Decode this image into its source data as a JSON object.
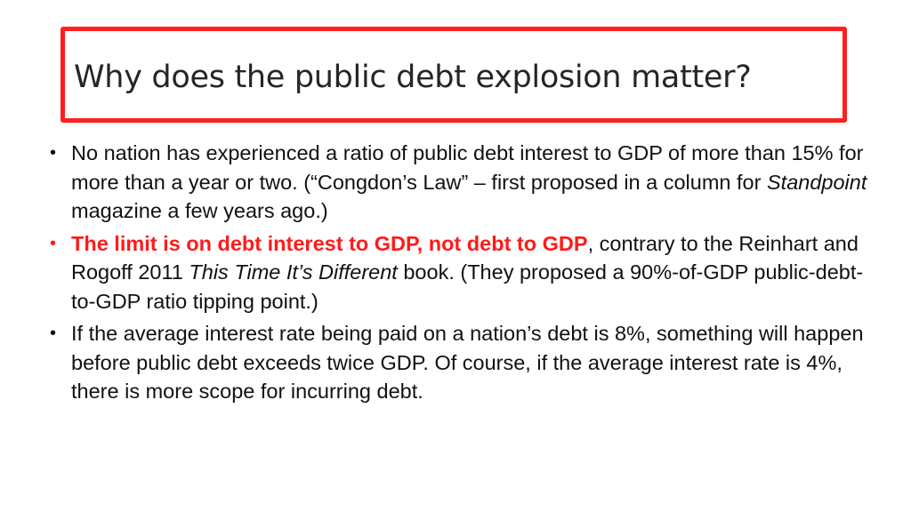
{
  "slide": {
    "title": "Why does the public debt explosion matter?",
    "accent_color": "#ff1a1a",
    "bullets": [
      {
        "text_1": "No nation has experienced a ratio of public debt interest to GDP of more than 15% for more than a year or two. (“Congdon’s Law” – first proposed in a column for ",
        "italic": "Standpoint",
        "text_2": " magazine a few years ago.)"
      },
      {
        "highlight": "The limit is on debt interest to GDP, not debt to GDP",
        "text_1": ", contrary to the Reinhart and Rogoff 2011 ",
        "italic": "This Time It’s Different",
        "text_2": " book. (They proposed a 90%-of-GDP public-debt-to-GDP ratio tipping point.)"
      },
      {
        "text_1": "If the average interest rate being paid on a nation’s debt is 8%, something will happen before public debt exceeds twice GDP. Of course, if the average interest rate is 4%, there is more scope for incurring debt."
      }
    ]
  }
}
